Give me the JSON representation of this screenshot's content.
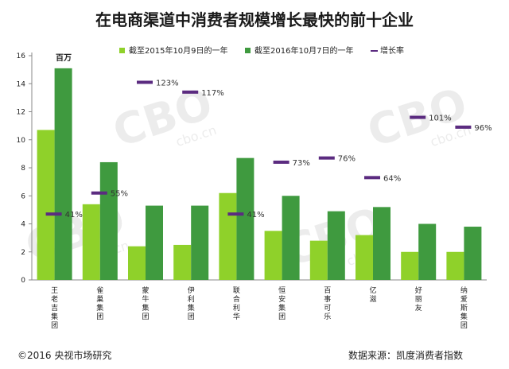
{
  "chart_data": {
    "type": "bar",
    "title": "在电商渠道中消费者规模增长最快的前十企业",
    "ylabel": "百万",
    "ylim": [
      0,
      16
    ],
    "yticks": [
      0,
      2,
      4,
      6,
      8,
      10,
      12,
      14,
      16
    ],
    "categories": [
      "王老吉集团",
      "雀巢集团",
      "蒙牛集团",
      "伊利集团",
      "联合利华",
      "恒安集团",
      "百事可乐",
      "亿滋",
      "好丽友",
      "纳爱斯集团"
    ],
    "series": [
      {
        "name": "截至2015年10月9日的一年",
        "color": "#8fd12a",
        "values": [
          10.7,
          5.4,
          2.4,
          2.5,
          6.2,
          3.5,
          2.8,
          3.2,
          2.0,
          2.0
        ]
      },
      {
        "name": "截至2016年10月7日的一年",
        "color": "#3f9a3f",
        "values": [
          15.1,
          8.4,
          5.3,
          5.3,
          8.7,
          6.0,
          4.9,
          5.2,
          4.0,
          3.8
        ]
      }
    ],
    "growth": {
      "name": "增长率",
      "color": "#5b2b80",
      "labels": [
        "41%",
        "55%",
        "123%",
        "117%",
        "41%",
        "73%",
        "76%",
        "64%",
        "101%",
        "96%"
      ],
      "levels": [
        4.7,
        6.2,
        14.1,
        13.4,
        4.7,
        8.4,
        8.7,
        7.3,
        11.6,
        10.9
      ]
    },
    "legend_position": "top",
    "grid": false
  },
  "watermark": "CBO cbo.cn",
  "footer": {
    "copyright": "©2016  央视市场研究",
    "source": "数据来源：凯度消费者指数"
  }
}
